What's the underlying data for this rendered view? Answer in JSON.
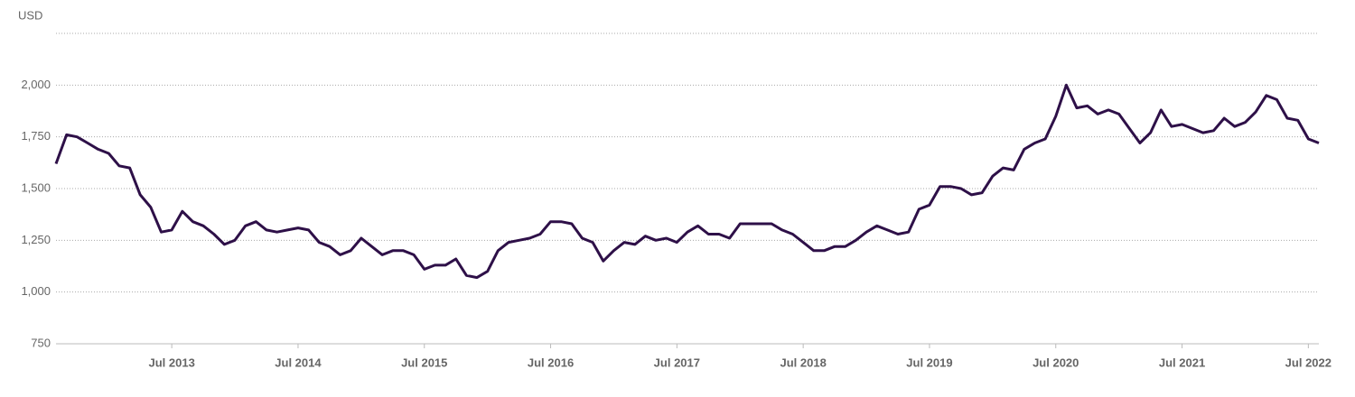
{
  "chart_data": {
    "type": "line",
    "y_label": "USD",
    "x": [
      "2012-08",
      "2012-09",
      "2012-10",
      "2012-11",
      "2012-12",
      "2013-01",
      "2013-02",
      "2013-03",
      "2013-04",
      "2013-05",
      "2013-06",
      "2013-07",
      "2013-08",
      "2013-09",
      "2013-10",
      "2013-11",
      "2013-12",
      "2014-01",
      "2014-02",
      "2014-03",
      "2014-04",
      "2014-05",
      "2014-06",
      "2014-07",
      "2014-08",
      "2014-09",
      "2014-10",
      "2014-11",
      "2014-12",
      "2015-01",
      "2015-02",
      "2015-03",
      "2015-04",
      "2015-05",
      "2015-06",
      "2015-07",
      "2015-08",
      "2015-09",
      "2015-10",
      "2015-11",
      "2015-12",
      "2016-01",
      "2016-02",
      "2016-03",
      "2016-04",
      "2016-05",
      "2016-06",
      "2016-07",
      "2016-08",
      "2016-09",
      "2016-10",
      "2016-11",
      "2016-12",
      "2017-01",
      "2017-02",
      "2017-03",
      "2017-04",
      "2017-05",
      "2017-06",
      "2017-07",
      "2017-08",
      "2017-09",
      "2017-10",
      "2017-11",
      "2017-12",
      "2018-01",
      "2018-02",
      "2018-03",
      "2018-04",
      "2018-05",
      "2018-06",
      "2018-07",
      "2018-08",
      "2018-09",
      "2018-10",
      "2018-11",
      "2018-12",
      "2019-01",
      "2019-02",
      "2019-03",
      "2019-04",
      "2019-05",
      "2019-06",
      "2019-07",
      "2019-08",
      "2019-09",
      "2019-10",
      "2019-11",
      "2019-12",
      "2020-01",
      "2020-02",
      "2020-03",
      "2020-04",
      "2020-05",
      "2020-06",
      "2020-07",
      "2020-08",
      "2020-09",
      "2020-10",
      "2020-11",
      "2020-12",
      "2021-01",
      "2021-02",
      "2021-03",
      "2021-04",
      "2021-05",
      "2021-06",
      "2021-07",
      "2021-08",
      "2021-09",
      "2021-10",
      "2021-11",
      "2021-12",
      "2022-01",
      "2022-02",
      "2022-03",
      "2022-04",
      "2022-05",
      "2022-06",
      "2022-07",
      "2022-08"
    ],
    "series": [
      {
        "color": "#2e1048",
        "values": [
          1620,
          1760,
          1750,
          1720,
          1690,
          1670,
          1610,
          1600,
          1470,
          1410,
          1290,
          1300,
          1390,
          1340,
          1320,
          1280,
          1230,
          1250,
          1320,
          1340,
          1300,
          1290,
          1300,
          1310,
          1300,
          1240,
          1220,
          1180,
          1200,
          1260,
          1220,
          1180,
          1200,
          1200,
          1180,
          1110,
          1130,
          1130,
          1160,
          1080,
          1070,
          1100,
          1200,
          1240,
          1250,
          1260,
          1280,
          1340,
          1340,
          1330,
          1260,
          1240,
          1150,
          1200,
          1240,
          1230,
          1270,
          1250,
          1260,
          1240,
          1290,
          1320,
          1280,
          1280,
          1260,
          1330,
          1330,
          1330,
          1330,
          1300,
          1280,
          1240,
          1200,
          1200,
          1220,
          1220,
          1250,
          1290,
          1320,
          1300,
          1280,
          1290,
          1400,
          1420,
          1510,
          1510,
          1500,
          1470,
          1480,
          1560,
          1600,
          1590,
          1690,
          1720,
          1740,
          1850,
          2000,
          1890,
          1900,
          1860,
          1880,
          1860,
          1790,
          1720,
          1770,
          1880,
          1800,
          1810,
          1790,
          1770,
          1780,
          1840,
          1800,
          1820,
          1870,
          1950,
          1930,
          1840,
          1830,
          1740,
          1720
        ]
      }
    ],
    "xlim": [
      "2012-08",
      "2022-08"
    ],
    "xticks": [
      {
        "value": "2013-07",
        "label": "Jul 2013"
      },
      {
        "value": "2014-07",
        "label": "Jul 2014"
      },
      {
        "value": "2015-07",
        "label": "Jul 2015"
      },
      {
        "value": "2016-07",
        "label": "Jul 2016"
      },
      {
        "value": "2017-07",
        "label": "Jul 2017"
      },
      {
        "value": "2018-07",
        "label": "Jul 2018"
      },
      {
        "value": "2019-07",
        "label": "Jul 2019"
      },
      {
        "value": "2020-07",
        "label": "Jul 2020"
      },
      {
        "value": "2021-07",
        "label": "Jul 2021"
      },
      {
        "value": "2022-07",
        "label": "Jul 2022"
      }
    ],
    "ylim": [
      750,
      2250
    ],
    "yticks": [
      750,
      {
        "value": 1000,
        "label": "1,000"
      },
      {
        "value": 1250,
        "label": "1,250"
      },
      {
        "value": 1500,
        "label": "1,500"
      },
      {
        "value": 1750,
        "label": "1,750"
      },
      {
        "value": 2000,
        "label": "2,000"
      }
    ],
    "grid": true
  }
}
